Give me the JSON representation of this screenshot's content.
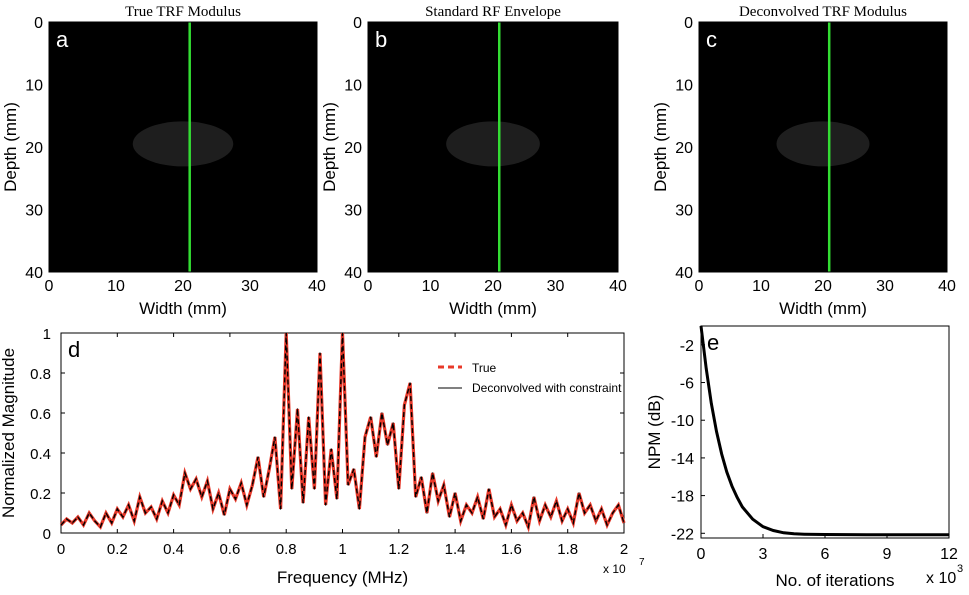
{
  "figure": {
    "panels": [
      {
        "letter": "a",
        "title": "True TRF Modulus",
        "variant": "dark"
      },
      {
        "letter": "b",
        "title": "Standard RF Envelope",
        "variant": "bright"
      },
      {
        "letter": "c",
        "title": "Deconvolved TRF Modulus",
        "variant": "dark"
      }
    ],
    "image_axes": {
      "ylabel": "Depth (mm)",
      "xlabel": "Width (mm)",
      "xticks": [
        "0",
        "10",
        "20",
        "30",
        "40"
      ],
      "yticks": [
        "0",
        "10",
        "20",
        "30",
        "40"
      ]
    },
    "colors": {
      "profile_line": "#33dd33",
      "true_curve": "#e8392a",
      "deconv_curve": "#000000",
      "inclusion": "#1e1e1e"
    }
  },
  "chart_data": [
    {
      "type": "image",
      "panel": "a",
      "title": "True TRF Modulus",
      "xlabel": "Width (mm)",
      "ylabel": "Depth (mm)",
      "xlim": [
        0,
        40
      ],
      "ylim": [
        40,
        0
      ],
      "inclusion": {
        "shape": "ellipse",
        "center_width_mm": 20,
        "center_depth_mm": 19.5,
        "semi_width_mm": 7.5,
        "semi_depth_mm": 3.6
      },
      "profile_line_width_mm": 21
    },
    {
      "type": "image",
      "panel": "b",
      "title": "Standard RF Envelope",
      "xlabel": "Width (mm)",
      "ylabel": "Depth (mm)",
      "xlim": [
        0,
        40
      ],
      "ylim": [
        40,
        0
      ],
      "inclusion": {
        "shape": "ellipse",
        "center_width_mm": 20,
        "center_depth_mm": 19.5,
        "semi_width_mm": 7.5,
        "semi_depth_mm": 3.6
      },
      "profile_line_width_mm": 21
    },
    {
      "type": "image",
      "panel": "c",
      "title": "Deconvolved TRF Modulus",
      "xlabel": "Width (mm)",
      "ylabel": "Depth (mm)",
      "xlim": [
        0,
        40
      ],
      "ylim": [
        40,
        0
      ],
      "inclusion": {
        "shape": "ellipse",
        "center_width_mm": 20,
        "center_depth_mm": 19.5,
        "semi_width_mm": 7.5,
        "semi_depth_mm": 3.6
      },
      "profile_line_width_mm": 21
    },
    {
      "type": "line",
      "panel": "d",
      "xlabel": "Frequency (MHz)",
      "ylabel": "Normalized Magnitude",
      "x_multiplier": "x 10",
      "x_multiplier_exp": "7",
      "xlim": [
        0,
        2
      ],
      "ylim": [
        0,
        1
      ],
      "xticks": [
        "0",
        "0.2",
        "0.4",
        "0.6",
        "0.8",
        "1",
        "1.2",
        "1.4",
        "1.6",
        "1.8",
        "2"
      ],
      "yticks": [
        "0",
        "0.2",
        "0.4",
        "0.6",
        "0.8",
        "1"
      ],
      "legend": {
        "position": "top-right",
        "entries": [
          "True",
          "Deconvolved with constraint"
        ]
      },
      "series": [
        {
          "name": "True",
          "style": "dashed",
          "color": "#e8392a"
        },
        {
          "name": "Deconvolved with constraint",
          "style": "solid",
          "color": "#000000"
        }
      ],
      "x": [
        0,
        0.02,
        0.04,
        0.06,
        0.08,
        0.1,
        0.12,
        0.14,
        0.16,
        0.18,
        0.2,
        0.22,
        0.24,
        0.26,
        0.28,
        0.3,
        0.32,
        0.34,
        0.36,
        0.38,
        0.4,
        0.42,
        0.44,
        0.46,
        0.48,
        0.5,
        0.52,
        0.54,
        0.56,
        0.58,
        0.6,
        0.62,
        0.64,
        0.66,
        0.68,
        0.7,
        0.72,
        0.74,
        0.76,
        0.78,
        0.8,
        0.82,
        0.84,
        0.86,
        0.88,
        0.9,
        0.92,
        0.94,
        0.96,
        0.98,
        1.0,
        1.02,
        1.04,
        1.06,
        1.08,
        1.1,
        1.12,
        1.14,
        1.16,
        1.18,
        1.2,
        1.22,
        1.24,
        1.26,
        1.28,
        1.3,
        1.32,
        1.34,
        1.36,
        1.38,
        1.4,
        1.42,
        1.44,
        1.46,
        1.48,
        1.5,
        1.52,
        1.54,
        1.56,
        1.58,
        1.6,
        1.62,
        1.64,
        1.66,
        1.68,
        1.7,
        1.72,
        1.74,
        1.76,
        1.78,
        1.8,
        1.82,
        1.84,
        1.86,
        1.88,
        1.9,
        1.92,
        1.94,
        1.96,
        1.98,
        2.0
      ],
      "values": [
        0.04,
        0.07,
        0.05,
        0.08,
        0.04,
        0.1,
        0.06,
        0.03,
        0.1,
        0.05,
        0.12,
        0.08,
        0.14,
        0.06,
        0.18,
        0.1,
        0.13,
        0.07,
        0.16,
        0.1,
        0.19,
        0.14,
        0.3,
        0.22,
        0.27,
        0.18,
        0.26,
        0.12,
        0.2,
        0.09,
        0.22,
        0.17,
        0.25,
        0.14,
        0.24,
        0.38,
        0.18,
        0.32,
        0.48,
        0.12,
        1.0,
        0.22,
        0.62,
        0.15,
        0.58,
        0.22,
        0.9,
        0.14,
        0.42,
        0.17,
        1.0,
        0.24,
        0.32,
        0.12,
        0.48,
        0.58,
        0.38,
        0.6,
        0.44,
        0.55,
        0.22,
        0.64,
        0.75,
        0.18,
        0.28,
        0.1,
        0.3,
        0.16,
        0.24,
        0.08,
        0.2,
        0.06,
        0.14,
        0.1,
        0.18,
        0.07,
        0.22,
        0.08,
        0.12,
        0.04,
        0.14,
        0.06,
        0.1,
        0.03,
        0.18,
        0.06,
        0.14,
        0.08,
        0.16,
        0.06,
        0.12,
        0.05,
        0.2,
        0.1,
        0.14,
        0.06,
        0.12,
        0.04,
        0.1,
        0.14,
        0.05
      ]
    },
    {
      "type": "line",
      "panel": "e",
      "xlabel": "No. of iterations",
      "ylabel": "NPM (dB)",
      "x_multiplier": "x 10",
      "x_multiplier_exp": "3",
      "xlim": [
        0,
        12
      ],
      "ylim": [
        -22.5,
        0
      ],
      "xticks": [
        "0",
        "3",
        "6",
        "9",
        "12"
      ],
      "yticks": [
        "-2",
        "-6",
        "-10",
        "-14",
        "-18",
        "-22"
      ],
      "x": [
        0,
        0.25,
        0.5,
        0.75,
        1.0,
        1.25,
        1.5,
        1.75,
        2.0,
        2.5,
        3.0,
        3.5,
        4.0,
        4.5,
        5.0,
        5.5,
        6.0,
        7.0,
        8.0,
        9.0,
        10.0,
        11.0,
        12.0
      ],
      "values": [
        0.0,
        -4.5,
        -8.2,
        -11.2,
        -13.6,
        -15.5,
        -17.0,
        -18.2,
        -19.2,
        -20.5,
        -21.3,
        -21.7,
        -21.95,
        -22.05,
        -22.1,
        -22.12,
        -22.13,
        -22.14,
        -22.15,
        -22.15,
        -22.15,
        -22.15,
        -22.15
      ]
    }
  ]
}
